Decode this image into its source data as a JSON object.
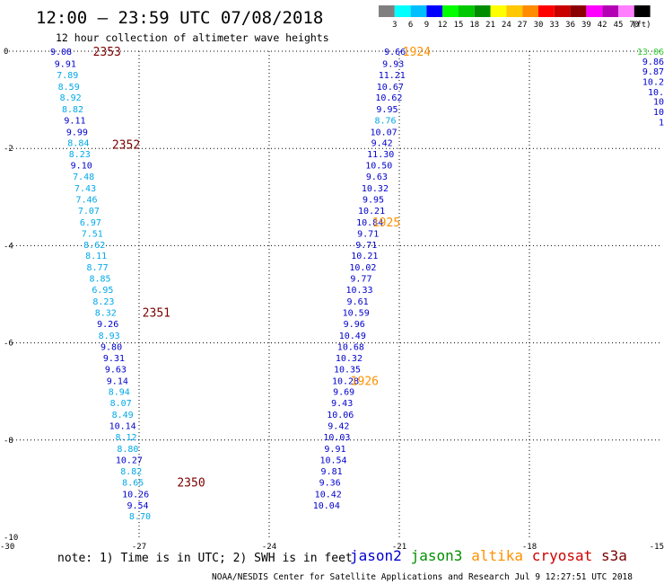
{
  "title": "12:00 – 23:59 UTC 07/08/2018",
  "subtitle": "12 hour collection of altimeter wave heights",
  "colorbar": {
    "labels": [
      "3",
      "6",
      "9",
      "12",
      "15",
      "18",
      "21",
      "24",
      "27",
      "30",
      "33",
      "36",
      "39",
      "42",
      "45",
      "70"
    ],
    "unit": "(ft)",
    "colors": [
      "#7f7f7f",
      "#00ffff",
      "#00bfff",
      "#0000ff",
      "#00ff00",
      "#00c800",
      "#008c00",
      "#ffff00",
      "#ffc800",
      "#ff8c00",
      "#ff0000",
      "#c80000",
      "#8b0000",
      "#ff00ff",
      "#b400b4",
      "#ff7fff",
      "#000000"
    ]
  },
  "note": "note: 1) Time is in UTC; 2) SWH is in feet",
  "legend": [
    {
      "label": "jason2",
      "color": "#0000d0"
    },
    {
      "label": "jason3",
      "color": "#009000"
    },
    {
      "label": "altika",
      "color": "#ff9000"
    },
    {
      "label": "cryosat",
      "color": "#d00000"
    },
    {
      "label": "s3a",
      "color": "#7a0000"
    }
  ],
  "footer": "NOAA/NESDIS Center for Satellite Applications and Research   Jul  9 12:27:51 UTC 2018",
  "chart_data": {
    "type": "scatter",
    "x_ticks": [
      "-30",
      "-27",
      "-24",
      "-21",
      "-18",
      "-15"
    ],
    "y_ticks": [
      "0",
      "-2",
      "-4",
      "-6",
      "-8",
      "-10"
    ],
    "xlim": [
      -30,
      -15
    ],
    "ylim": [
      -10,
      0
    ],
    "grid": true,
    "colors": {
      "dark": "#0000cd",
      "light": "#00a8e8"
    },
    "series": [
      {
        "name": "s3a",
        "color": "#7a0000",
        "points": [
          {
            "t": "9.08",
            "x": -28.8,
            "y": 0.0,
            "c": "dark"
          },
          {
            "t": "9.91",
            "x": -28.7,
            "y": -0.25,
            "c": "dark"
          },
          {
            "t": "7.89",
            "x": -28.65,
            "y": -0.48,
            "c": "light"
          },
          {
            "t": "8.59",
            "x": -28.62,
            "y": -0.72,
            "c": "light"
          },
          {
            "t": "8.92",
            "x": -28.58,
            "y": -0.94,
            "c": "light"
          },
          {
            "t": "8.82",
            "x": -28.53,
            "y": -1.18,
            "c": "light"
          },
          {
            "t": "9.11",
            "x": -28.48,
            "y": -1.41,
            "c": "dark"
          },
          {
            "t": "9.99",
            "x": -28.43,
            "y": -1.65,
            "c": "dark"
          },
          {
            "t": "8.84",
            "x": -28.4,
            "y": -1.88,
            "c": "light"
          },
          {
            "t": "8.23",
            "x": -28.37,
            "y": -2.11,
            "c": "light"
          },
          {
            "t": "9.10",
            "x": -28.33,
            "y": -2.34,
            "c": "dark"
          },
          {
            "t": "7.48",
            "x": -28.28,
            "y": -2.57,
            "c": "light"
          },
          {
            "t": "7.43",
            "x": -28.24,
            "y": -2.81,
            "c": "light"
          },
          {
            "t": "7.46",
            "x": -28.21,
            "y": -3.04,
            "c": "light"
          },
          {
            "t": "7.07",
            "x": -28.16,
            "y": -3.27,
            "c": "light"
          },
          {
            "t": "6.97",
            "x": -28.12,
            "y": -3.51,
            "c": "light"
          },
          {
            "t": "7.51",
            "x": -28.08,
            "y": -3.74,
            "c": "light"
          },
          {
            "t": "8.62",
            "x": -28.03,
            "y": -3.97,
            "c": "light"
          },
          {
            "t": "8.11",
            "x": -27.99,
            "y": -4.2,
            "c": "light"
          },
          {
            "t": "8.77",
            "x": -27.96,
            "y": -4.44,
            "c": "light"
          },
          {
            "t": "8.85",
            "x": -27.9,
            "y": -4.67,
            "c": "light"
          },
          {
            "t": "6.95",
            "x": -27.84,
            "y": -4.9,
            "c": "light"
          },
          {
            "t": "8.23",
            "x": -27.82,
            "y": -5.14,
            "c": "light"
          },
          {
            "t": "8.32",
            "x": -27.77,
            "y": -5.37,
            "c": "light"
          },
          {
            "t": "9.26",
            "x": -27.72,
            "y": -5.6,
            "c": "dark"
          },
          {
            "t": "8.93",
            "x": -27.69,
            "y": -5.84,
            "c": "light"
          },
          {
            "t": "9.80",
            "x": -27.64,
            "y": -6.07,
            "c": "dark"
          },
          {
            "t": "9.31",
            "x": -27.58,
            "y": -6.3,
            "c": "dark"
          },
          {
            "t": "9.63",
            "x": -27.54,
            "y": -6.53,
            "c": "dark"
          },
          {
            "t": "9.14",
            "x": -27.5,
            "y": -6.77,
            "c": "dark"
          },
          {
            "t": "8.94",
            "x": -27.46,
            "y": -7.0,
            "c": "light"
          },
          {
            "t": "8.07",
            "x": -27.42,
            "y": -7.23,
            "c": "light"
          },
          {
            "t": "8.49",
            "x": -27.38,
            "y": -7.47,
            "c": "light"
          },
          {
            "t": "10.14",
            "x": -27.38,
            "y": -7.7,
            "c": "dark"
          },
          {
            "t": "8.12",
            "x": -27.3,
            "y": -7.93,
            "c": "light"
          },
          {
            "t": "8.80",
            "x": -27.26,
            "y": -8.17,
            "c": "light"
          },
          {
            "t": "10.27",
            "x": -27.23,
            "y": -8.4,
            "c": "dark"
          },
          {
            "t": "8.82",
            "x": -27.18,
            "y": -8.63,
            "c": "light"
          },
          {
            "t": "8.65",
            "x": -27.14,
            "y": -8.86,
            "c": "light"
          },
          {
            "t": "10.26",
            "x": -27.08,
            "y": -9.1,
            "c": "dark"
          },
          {
            "t": "9.54",
            "x": -27.03,
            "y": -9.33,
            "c": "dark"
          },
          {
            "t": "8.70",
            "x": -26.98,
            "y": -9.56,
            "c": "light"
          }
        ]
      },
      {
        "name": "altika",
        "color": "#ff9000",
        "points": [
          {
            "t": "9.66",
            "x": -21.1,
            "y": 0.0,
            "c": "dark"
          },
          {
            "t": "9.93",
            "x": -21.14,
            "y": -0.25,
            "c": "dark"
          },
          {
            "t": "11.21",
            "x": -21.17,
            "y": -0.48,
            "c": "dark"
          },
          {
            "t": "10.67",
            "x": -21.21,
            "y": -0.72,
            "c": "dark"
          },
          {
            "t": "10.62",
            "x": -21.24,
            "y": -0.94,
            "c": "dark"
          },
          {
            "t": "9.95",
            "x": -21.28,
            "y": -1.18,
            "c": "dark"
          },
          {
            "t": "8.76",
            "x": -21.32,
            "y": -1.41,
            "c": "light"
          },
          {
            "t": "10.07",
            "x": -21.36,
            "y": -1.65,
            "c": "dark"
          },
          {
            "t": "9.42",
            "x": -21.4,
            "y": -1.88,
            "c": "dark"
          },
          {
            "t": "11.30",
            "x": -21.43,
            "y": -2.11,
            "c": "dark"
          },
          {
            "t": "10.50",
            "x": -21.47,
            "y": -2.34,
            "c": "dark"
          },
          {
            "t": "9.63",
            "x": -21.52,
            "y": -2.57,
            "c": "dark"
          },
          {
            "t": "10.32",
            "x": -21.56,
            "y": -2.81,
            "c": "dark"
          },
          {
            "t": "9.95",
            "x": -21.6,
            "y": -3.04,
            "c": "dark"
          },
          {
            "t": "10.21",
            "x": -21.64,
            "y": -3.27,
            "c": "dark"
          },
          {
            "t": "10.84",
            "x": -21.68,
            "y": -3.51,
            "c": "dark"
          },
          {
            "t": "9.71",
            "x": -21.72,
            "y": -3.74,
            "c": "dark"
          },
          {
            "t": "9.71",
            "x": -21.76,
            "y": -3.97,
            "c": "dark"
          },
          {
            "t": "10.21",
            "x": -21.8,
            "y": -4.2,
            "c": "dark"
          },
          {
            "t": "10.02",
            "x": -21.84,
            "y": -4.44,
            "c": "dark"
          },
          {
            "t": "9.77",
            "x": -21.88,
            "y": -4.67,
            "c": "dark"
          },
          {
            "t": "10.33",
            "x": -21.92,
            "y": -4.9,
            "c": "dark"
          },
          {
            "t": "9.61",
            "x": -21.96,
            "y": -5.14,
            "c": "dark"
          },
          {
            "t": "10.59",
            "x": -22.0,
            "y": -5.37,
            "c": "dark"
          },
          {
            "t": "9.96",
            "x": -22.04,
            "y": -5.6,
            "c": "dark"
          },
          {
            "t": "10.49",
            "x": -22.08,
            "y": -5.84,
            "c": "dark"
          },
          {
            "t": "10.68",
            "x": -22.12,
            "y": -6.07,
            "c": "dark"
          },
          {
            "t": "10.32",
            "x": -22.16,
            "y": -6.3,
            "c": "dark"
          },
          {
            "t": "10.35",
            "x": -22.2,
            "y": -6.53,
            "c": "dark"
          },
          {
            "t": "10.28",
            "x": -22.24,
            "y": -6.77,
            "c": "dark"
          },
          {
            "t": "9.69",
            "x": -22.28,
            "y": -7.0,
            "c": "dark"
          },
          {
            "t": "9.43",
            "x": -22.32,
            "y": -7.23,
            "c": "dark"
          },
          {
            "t": "10.06",
            "x": -22.36,
            "y": -7.47,
            "c": "dark"
          },
          {
            "t": "9.42",
            "x": -22.4,
            "y": -7.7,
            "c": "dark"
          },
          {
            "t": "10.03",
            "x": -22.44,
            "y": -7.93,
            "c": "dark"
          },
          {
            "t": "9.91",
            "x": -22.48,
            "y": -8.17,
            "c": "dark"
          },
          {
            "t": "10.54",
            "x": -22.52,
            "y": -8.4,
            "c": "dark"
          },
          {
            "t": "9.81",
            "x": -22.56,
            "y": -8.63,
            "c": "dark"
          },
          {
            "t": "9.36",
            "x": -22.6,
            "y": -8.86,
            "c": "dark"
          },
          {
            "t": "10.42",
            "x": -22.64,
            "y": -9.1,
            "c": "dark"
          },
          {
            "t": "10.04",
            "x": -22.68,
            "y": -9.33,
            "c": "dark"
          }
        ]
      },
      {
        "name": "jason3",
        "color": "#009000",
        "points": [
          {
            "t": "13.06",
            "x": -15.15,
            "y": 0.0,
            "c": "green"
          },
          {
            "t": "9.86",
            "x": -15.15,
            "y": -0.2,
            "c": "dark"
          },
          {
            "t": "9.87",
            "x": -15.15,
            "y": -0.41,
            "c": "dark"
          },
          {
            "t": "10.2",
            "x": -15.15,
            "y": -0.62,
            "c": "dark"
          },
          {
            "t": "10.",
            "x": -15.15,
            "y": -0.83,
            "c": "dark"
          },
          {
            "t": "10",
            "x": -15.15,
            "y": -1.03,
            "c": "dark"
          },
          {
            "t": "10",
            "x": -15.15,
            "y": -1.24,
            "c": "dark"
          },
          {
            "t": "1",
            "x": -15.15,
            "y": -1.45,
            "c": "dark"
          }
        ]
      }
    ],
    "pass_labels": [
      {
        "t": "2353",
        "x": -27.74,
        "y": 0.0,
        "color": "#7a0000"
      },
      {
        "t": "2352",
        "x": -27.3,
        "y": -1.91,
        "color": "#7a0000"
      },
      {
        "t": "2351",
        "x": -26.6,
        "y": -5.37,
        "color": "#7a0000"
      },
      {
        "t": "2350",
        "x": -25.8,
        "y": -8.86,
        "color": "#7a0000"
      },
      {
        "t": "1924",
        "x": -20.6,
        "y": 0.0,
        "color": "#ff9000"
      },
      {
        "t": "1925",
        "x": -21.3,
        "y": -3.51,
        "color": "#ff9000"
      },
      {
        "t": "1926",
        "x": -21.8,
        "y": -6.77,
        "color": "#ff9000"
      }
    ]
  }
}
